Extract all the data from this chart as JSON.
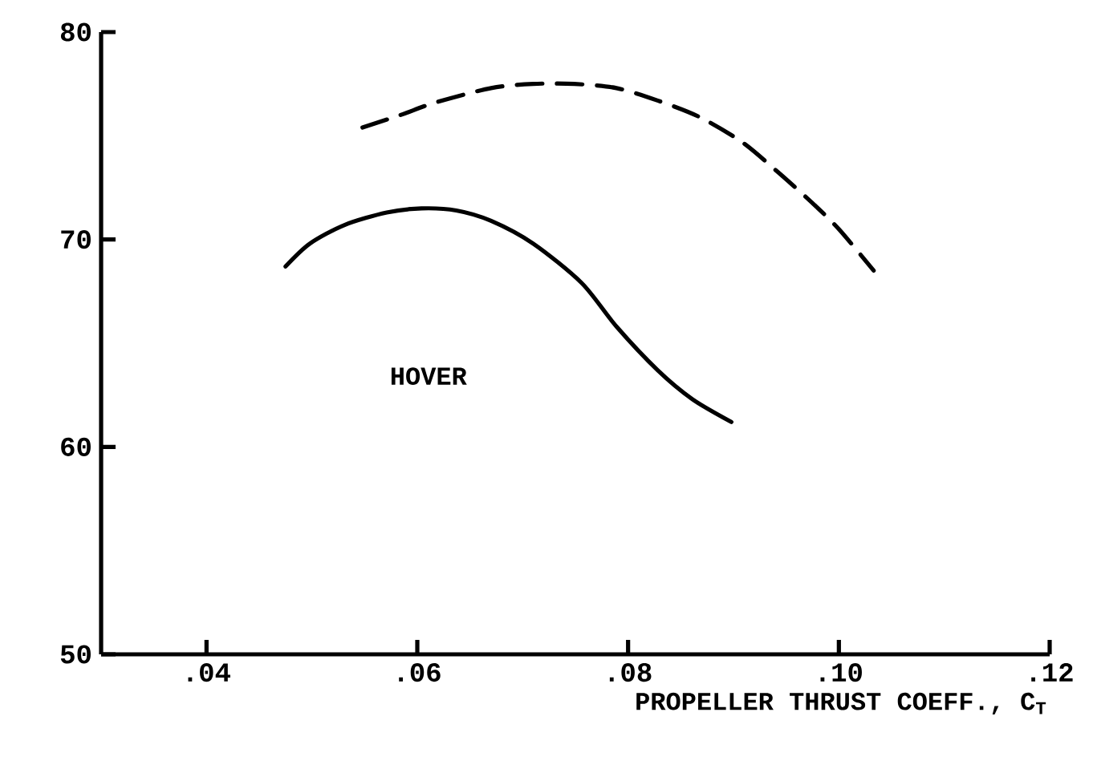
{
  "chart_data": {
    "type": "line",
    "xlabel": "PROPELLER THRUST COEFF., C$_{T}$",
    "xlim": [
      0.03,
      0.12
    ],
    "ylim": [
      50,
      80
    ],
    "xticks": [
      {
        "value": 0.04,
        "label": ".04"
      },
      {
        "value": 0.06,
        "label": ".06"
      },
      {
        "value": 0.08,
        "label": ".08"
      },
      {
        "value": 0.1,
        "label": ".10"
      },
      {
        "value": 0.12,
        "label": ".12"
      }
    ],
    "yticks": [
      50,
      60,
      70,
      80
    ],
    "marker": "none",
    "annotations": [
      "HOVER"
    ],
    "series": [
      {
        "color": "#000000",
        "line_style": "solid",
        "x": [
          0.0475,
          0.0498,
          0.0531,
          0.0571,
          0.0604,
          0.0637,
          0.067,
          0.071,
          0.0756,
          0.0789,
          0.0828,
          0.0861,
          0.0898
        ],
        "values": [
          68.7,
          69.8,
          70.7,
          71.3,
          71.5,
          71.4,
          70.9,
          69.8,
          67.9,
          65.8,
          63.7,
          62.3,
          61.2
        ]
      },
      {
        "color": "#000000",
        "line_style": "dashed",
        "x": [
          0.0548,
          0.0584,
          0.0617,
          0.067,
          0.071,
          0.0749,
          0.0789,
          0.0828,
          0.0868,
          0.0908,
          0.0941,
          0.0974,
          0.1,
          0.1033
        ],
        "values": [
          75.4,
          76.0,
          76.6,
          77.3,
          77.5,
          77.5,
          77.3,
          76.7,
          75.9,
          74.7,
          73.3,
          71.8,
          70.5,
          68.5
        ]
      }
    ]
  }
}
